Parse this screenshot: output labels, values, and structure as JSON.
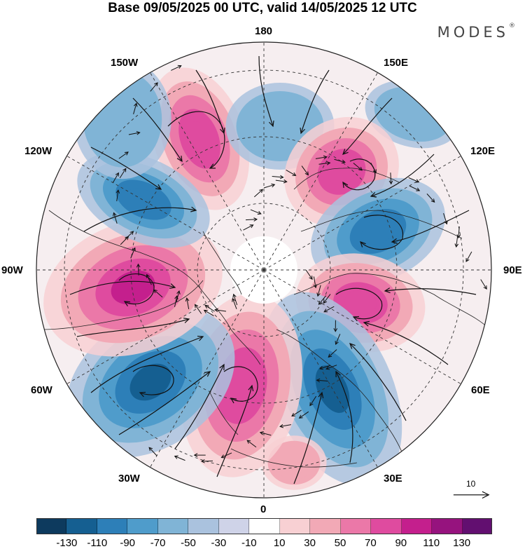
{
  "title": "Base 09/05/2025 00 UTC, valid 14/05/2025 12 UTC",
  "brand": "MODES",
  "brand_mark": "®",
  "longitude_labels": {
    "top": "180",
    "bottom": "0",
    "left": "90W",
    "right": "90E",
    "upper_left_1": "150W",
    "upper_left_2": "120W",
    "upper_right_1": "150E",
    "upper_right_2": "120E",
    "lower_left_1": "60W",
    "lower_left_2": "30W",
    "lower_right_1": "60E",
    "lower_right_2": "30E"
  },
  "reference_vector": {
    "label": "10",
    "magnitude": 10
  },
  "colorbar": {
    "ticks": [
      "-130",
      "-110",
      "-90",
      "-70",
      "-50",
      "-30",
      "-10",
      "10",
      "30",
      "50",
      "70",
      "90",
      "110",
      "130"
    ],
    "colors": [
      "#0d3a5e",
      "#155f91",
      "#2d7fb8",
      "#4f9ccb",
      "#80b4d6",
      "#aac2de",
      "#cfd3e8",
      "#ffffff",
      "#f8d0d3",
      "#f2a9b6",
      "#eb78a8",
      "#df4b9f",
      "#c41f8d",
      "#96137e",
      "#620f70"
    ]
  },
  "map_features": {
    "projection": "north-polar-stereographic",
    "latitude_circles": true,
    "meridian_lines": true,
    "coastlines": true,
    "anomaly_centers": [
      {
        "region": "North Pacific (165W)",
        "sign": "positive",
        "level": 90
      },
      {
        "region": "Chukotka (165E)",
        "sign": "negative",
        "level": -50
      },
      {
        "region": "Sea of Okhotsk (145E)",
        "sign": "negative",
        "level": -50
      },
      {
        "region": "East Siberia (130E)",
        "sign": "positive",
        "level": 90
      },
      {
        "region": "Central Siberia (105E)",
        "sign": "negative",
        "level": -90
      },
      {
        "region": "Kazakhstan (75E)",
        "sign": "positive",
        "level": 90
      },
      {
        "region": "Scandinavia/Russia (40E)",
        "sign": "negative",
        "level": -110
      },
      {
        "region": "Mediterranean (25E)",
        "sign": "positive",
        "level": 50
      },
      {
        "region": "North Atlantic (5W)",
        "sign": "positive",
        "level": 90
      },
      {
        "region": "Atlantic (50W)",
        "sign": "negative",
        "level": -110
      },
      {
        "region": "Canada (95W)",
        "sign": "positive",
        "level": 110
      },
      {
        "region": "Alaska/Canada (125W)",
        "sign": "negative",
        "level": -90
      },
      {
        "region": "Gulf of Alaska (130W)",
        "sign": "negative",
        "level": -50
      }
    ]
  }
}
